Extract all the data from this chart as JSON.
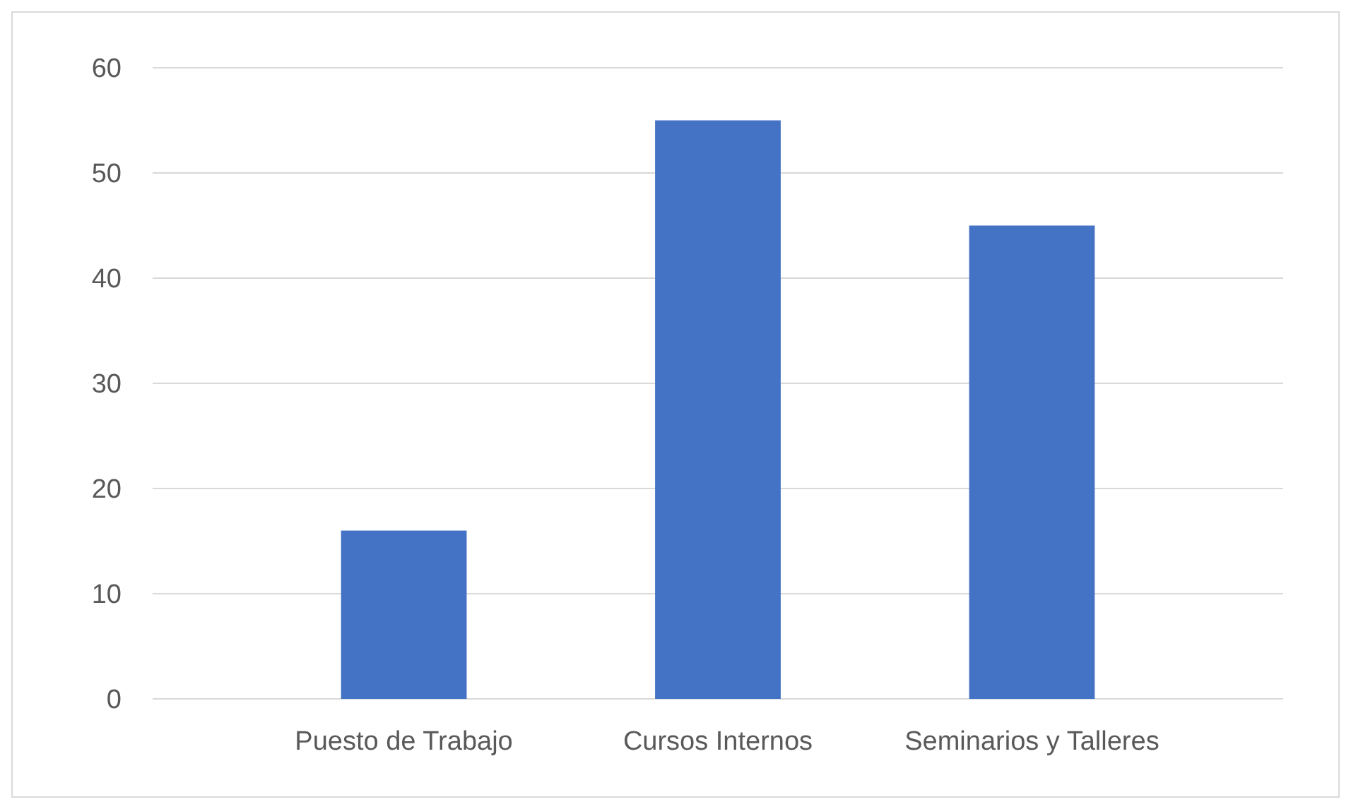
{
  "chart_data": {
    "type": "bar",
    "categories": [
      "Puesto de Trabajo",
      "Cursos Internos",
      "Seminarios y Talleres"
    ],
    "values": [
      16,
      55,
      45
    ],
    "color": "#4472c4",
    "ylim": [
      0,
      60
    ],
    "yticks": [
      0,
      10,
      20,
      30,
      40,
      50,
      60
    ],
    "grid": true
  }
}
